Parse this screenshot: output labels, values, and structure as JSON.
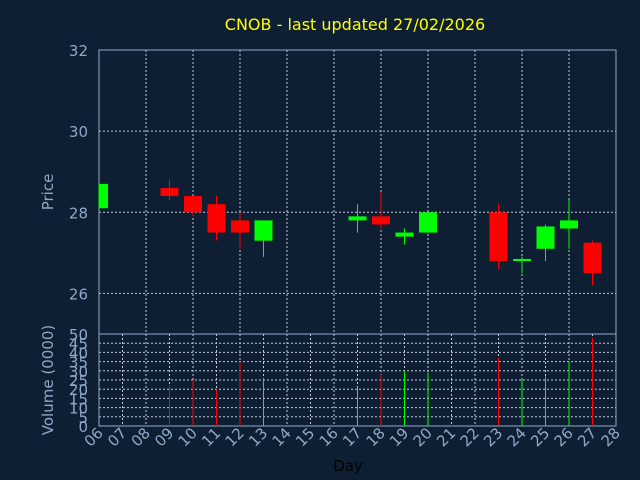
{
  "chart_data": {
    "type": "candlestick",
    "title": "CNOB - last updated 27/02/2026",
    "price_panel": {
      "ylabel": "Price",
      "ylim": [
        25,
        32
      ],
      "yticks": [
        "26",
        "28",
        "30",
        "32"
      ],
      "grid": true
    },
    "volume_panel": {
      "ylabel": "Volume (0000)",
      "ylim": [
        0,
        50
      ],
      "yticks": [
        "0",
        "5",
        "10",
        "15",
        "20",
        "25",
        "30",
        "35",
        "40",
        "45",
        "50"
      ],
      "grid": true
    },
    "xlabel": "Day",
    "xticks": [
      "06",
      "07",
      "08",
      "09",
      "10",
      "11",
      "12",
      "13",
      "14",
      "15",
      "16",
      "17",
      "18",
      "19",
      "20",
      "21",
      "22",
      "23",
      "24",
      "25",
      "26",
      "27",
      "28"
    ],
    "colors": {
      "up": "#00ff00",
      "down": "#ff0000"
    },
    "candles": [
      {
        "day": "06",
        "open": 28.1,
        "high": 28.7,
        "low": 28.1,
        "close": 28.7,
        "volume": 0
      },
      {
        "day": "09",
        "open": 28.6,
        "high": 28.8,
        "low": 28.3,
        "close": 28.4,
        "volume": 22
      },
      {
        "day": "10",
        "open": 28.4,
        "high": 28.4,
        "low": 27.9,
        "close": 28.0,
        "volume": 25
      },
      {
        "day": "11",
        "open": 28.2,
        "high": 28.4,
        "low": 27.3,
        "close": 27.5,
        "volume": 20
      },
      {
        "day": "12",
        "open": 27.8,
        "high": 28.0,
        "low": 27.1,
        "close": 27.5,
        "volume": 35
      },
      {
        "day": "13",
        "open": 27.3,
        "high": 27.8,
        "low": 26.9,
        "close": 27.8,
        "volume": 26
      },
      {
        "day": "17",
        "open": 27.8,
        "high": 28.2,
        "low": 27.5,
        "close": 27.9,
        "volume": 21
      },
      {
        "day": "18",
        "open": 27.9,
        "high": 28.5,
        "low": 27.6,
        "close": 27.7,
        "volume": 28
      },
      {
        "day": "19",
        "open": 27.4,
        "high": 27.6,
        "low": 27.2,
        "close": 27.5,
        "volume": 30
      },
      {
        "day": "20",
        "open": 27.5,
        "high": 28.0,
        "low": 27.5,
        "close": 28.0,
        "volume": 29
      },
      {
        "day": "23",
        "open": 28.0,
        "high": 28.2,
        "low": 26.6,
        "close": 26.8,
        "volume": 37
      },
      {
        "day": "24",
        "open": 26.8,
        "high": 26.9,
        "low": 26.5,
        "close": 26.85,
        "volume": 25
      },
      {
        "day": "25",
        "open": 27.1,
        "high": 27.7,
        "low": 26.8,
        "close": 27.65,
        "volume": 27
      },
      {
        "day": "26",
        "open": 27.6,
        "high": 28.3,
        "low": 27.1,
        "close": 27.8,
        "volume": 35
      },
      {
        "day": "27",
        "open": 27.25,
        "high": 27.3,
        "low": 26.2,
        "close": 26.5,
        "volume": 48
      }
    ]
  }
}
